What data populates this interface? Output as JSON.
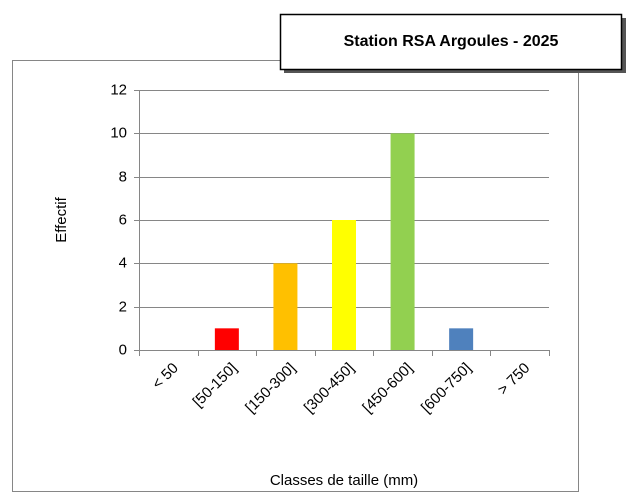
{
  "chart_data": {
    "type": "bar",
    "title": "Station RSA Argoules - 2025",
    "categories": [
      "< 50",
      "[50-150]",
      "[150-300]",
      "[300-450]",
      "[450-600]",
      "[600-750]",
      "> 750"
    ],
    "values": [
      0,
      1,
      4,
      6,
      10,
      1,
      0
    ],
    "colors": [
      "#ff0000",
      "#ff0000",
      "#ffc000",
      "#ffff00",
      "#92d050",
      "#4f81bd",
      "#4f81bd"
    ],
    "x_label": "Classes de taille (mm)",
    "y_label": "Effectif",
    "ylim": [
      0,
      12
    ],
    "yticks": [
      0,
      2,
      4,
      6,
      8,
      10,
      12
    ],
    "grid": true
  }
}
